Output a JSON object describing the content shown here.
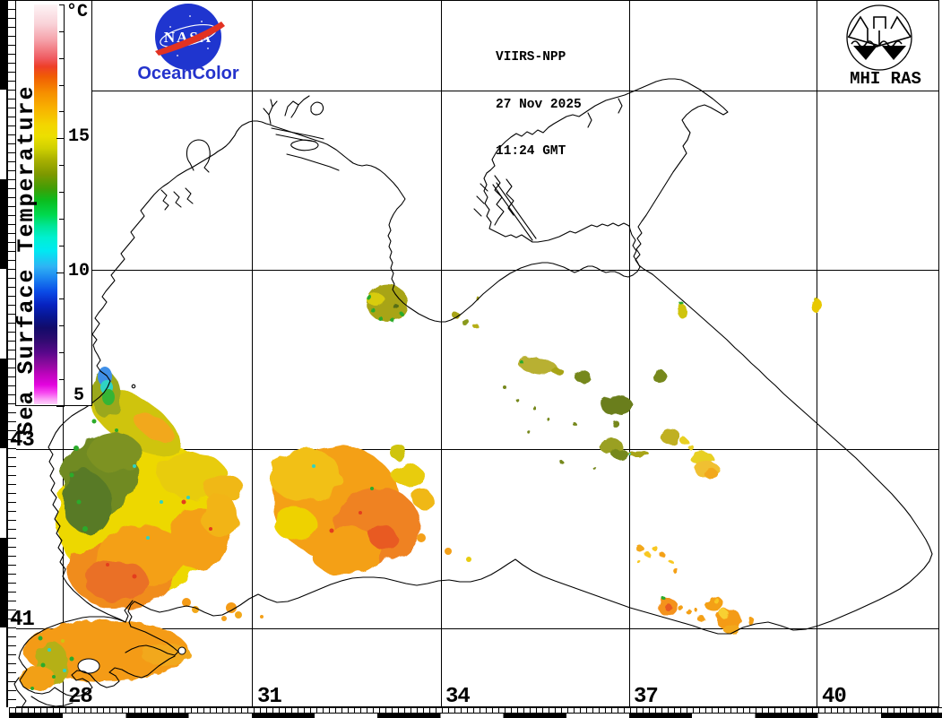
{
  "header": {
    "satellite": "VIIRS-NPP",
    "date": "27 Nov 2025",
    "time": "11:24 GMT"
  },
  "branding": {
    "nasa_wordmark": "NASA",
    "oceancolor": "OceanColor",
    "mhi": "MHI RAS"
  },
  "colorbar": {
    "title": "Sea Surface Temperature",
    "unit": "°C",
    "scale_min": 5,
    "scale_max": 20,
    "tick_labels": [
      "15",
      "10",
      "5"
    ]
  },
  "axes": {
    "lon": [
      "28",
      "31",
      "34",
      "37",
      "40"
    ],
    "lat": [
      "43",
      "41"
    ]
  },
  "colors": {
    "nasa_blue": "#1f35cf",
    "nasa_red": "#e23222",
    "oceancolor_text": "#2433cc",
    "coastline": "#000000",
    "grid": "#000000",
    "sst_palette_stops": [
      "#fdf4f6",
      "#f5a0a8",
      "#ee3f28",
      "#f68e00",
      "#f3d500",
      "#a8b000",
      "#3f9e06",
      "#00d94e",
      "#00f0d2",
      "#2fb2f4",
      "#0a4ae6",
      "#071692",
      "#300b70",
      "#8c0a9e",
      "#e304de",
      "#fdd2fa"
    ]
  }
}
